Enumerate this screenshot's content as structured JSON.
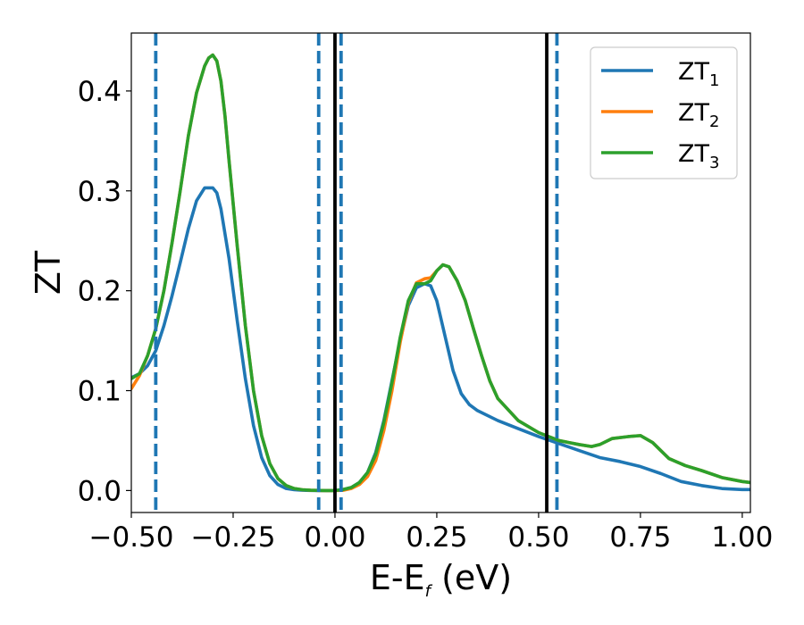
{
  "chart_data": {
    "type": "line",
    "xlabel_main": "E-E",
    "xlabel_sub": "f",
    "xlabel_unit": " (eV)",
    "ylabel": "ZT",
    "xlim": [
      -0.5,
      1.02
    ],
    "ylim": [
      -0.022,
      0.458
    ],
    "xticks": [
      -0.5,
      -0.25,
      0.0,
      0.25,
      0.5,
      0.75,
      1.0
    ],
    "xtick_labels": [
      "−0.50",
      "−0.25",
      "0.00",
      "0.25",
      "0.50",
      "0.75",
      "1.00"
    ],
    "yticks": [
      0.0,
      0.1,
      0.2,
      0.3,
      0.4
    ],
    "ytick_labels": [
      "0.0",
      "0.1",
      "0.2",
      "0.3",
      "0.4"
    ],
    "grid": false,
    "legend_position": "top-right",
    "legend": [
      {
        "main": "ZT",
        "sub": "1",
        "color": "#1f77b4"
      },
      {
        "main": "ZT",
        "sub": "2",
        "color": "#ff7f0e"
      },
      {
        "main": "ZT",
        "sub": "3",
        "color": "#2ca02c"
      }
    ],
    "vlines": [
      {
        "x": -0.44,
        "style": "dashed",
        "color": "#1f77b4"
      },
      {
        "x": -0.04,
        "style": "dashed",
        "color": "#1f77b4"
      },
      {
        "x": 0.015,
        "style": "dashed",
        "color": "#1f77b4"
      },
      {
        "x": 0.0,
        "style": "solid",
        "color": "#000000"
      },
      {
        "x": 0.52,
        "style": "solid",
        "color": "#000000"
      },
      {
        "x": 0.545,
        "style": "dashed",
        "color": "#1f77b4"
      }
    ],
    "series": [
      {
        "name": "ZT1",
        "color": "#1f77b4",
        "x": [
          -0.5,
          -0.48,
          -0.46,
          -0.44,
          -0.42,
          -0.4,
          -0.38,
          -0.36,
          -0.34,
          -0.32,
          -0.3,
          -0.29,
          -0.28,
          -0.26,
          -0.24,
          -0.22,
          -0.2,
          -0.18,
          -0.16,
          -0.14,
          -0.12,
          -0.1,
          -0.08,
          -0.06,
          -0.04,
          -0.02,
          0.0,
          0.02,
          0.04,
          0.06,
          0.08,
          0.1,
          0.12,
          0.14,
          0.16,
          0.18,
          0.2,
          0.22,
          0.235,
          0.25,
          0.27,
          0.29,
          0.31,
          0.33,
          0.35,
          0.4,
          0.45,
          0.5,
          0.55,
          0.6,
          0.65,
          0.7,
          0.75,
          0.8,
          0.85,
          0.9,
          0.95,
          1.0,
          1.02
        ],
        "y": [
          0.113,
          0.117,
          0.125,
          0.14,
          0.165,
          0.195,
          0.228,
          0.262,
          0.29,
          0.303,
          0.303,
          0.298,
          0.282,
          0.232,
          0.17,
          0.112,
          0.065,
          0.033,
          0.015,
          0.006,
          0.002,
          0.0008,
          0.0003,
          0.0001,
          0.0,
          0.0,
          0.0,
          0.001,
          0.003,
          0.008,
          0.018,
          0.038,
          0.07,
          0.11,
          0.15,
          0.185,
          0.203,
          0.207,
          0.205,
          0.19,
          0.155,
          0.12,
          0.097,
          0.086,
          0.08,
          0.07,
          0.062,
          0.054,
          0.047,
          0.04,
          0.033,
          0.029,
          0.024,
          0.017,
          0.009,
          0.005,
          0.002,
          0.001,
          0.001
        ]
      },
      {
        "name": "ZT2",
        "color": "#ff7f0e",
        "x": [
          -0.5,
          -0.48,
          -0.46,
          -0.44,
          -0.42,
          -0.4,
          -0.38,
          -0.36,
          -0.34,
          -0.32,
          -0.31,
          -0.3,
          -0.29,
          -0.28,
          -0.27,
          -0.26,
          -0.24,
          -0.22,
          -0.2,
          -0.18,
          -0.16,
          -0.14,
          -0.12,
          -0.1,
          -0.08,
          -0.06,
          -0.04,
          -0.02,
          0.0,
          0.02,
          0.04,
          0.06,
          0.08,
          0.1,
          0.12,
          0.14,
          0.16,
          0.18,
          0.2,
          0.22,
          0.235,
          0.25,
          0.265,
          0.28,
          0.3,
          0.32,
          0.34,
          0.36,
          0.38,
          0.4,
          0.45,
          0.5,
          0.55,
          0.6,
          0.63,
          0.65,
          0.68,
          0.72,
          0.75,
          0.78,
          0.82,
          0.86,
          0.9,
          0.95,
          1.0,
          1.02
        ],
        "y": [
          0.102,
          0.115,
          0.135,
          0.162,
          0.2,
          0.248,
          0.3,
          0.355,
          0.398,
          0.425,
          0.433,
          0.436,
          0.43,
          0.41,
          0.375,
          0.33,
          0.245,
          0.165,
          0.1,
          0.055,
          0.027,
          0.012,
          0.005,
          0.002,
          0.0008,
          0.0003,
          0.0001,
          0.0,
          0.0,
          0.0002,
          0.002,
          0.006,
          0.014,
          0.03,
          0.06,
          0.1,
          0.148,
          0.188,
          0.208,
          0.212,
          0.213,
          0.22,
          0.226,
          0.224,
          0.21,
          0.19,
          0.162,
          0.135,
          0.11,
          0.092,
          0.07,
          0.058,
          0.05,
          0.046,
          0.044,
          0.046,
          0.052,
          0.054,
          0.055,
          0.048,
          0.032,
          0.025,
          0.02,
          0.013,
          0.009,
          0.008
        ]
      },
      {
        "name": "ZT3",
        "color": "#2ca02c",
        "x": [
          -0.5,
          -0.48,
          -0.46,
          -0.44,
          -0.42,
          -0.4,
          -0.38,
          -0.36,
          -0.34,
          -0.32,
          -0.31,
          -0.3,
          -0.29,
          -0.28,
          -0.27,
          -0.26,
          -0.24,
          -0.22,
          -0.2,
          -0.18,
          -0.16,
          -0.14,
          -0.12,
          -0.1,
          -0.08,
          -0.06,
          -0.04,
          -0.02,
          0.0,
          0.02,
          0.04,
          0.06,
          0.08,
          0.1,
          0.12,
          0.14,
          0.16,
          0.18,
          0.2,
          0.22,
          0.235,
          0.25,
          0.265,
          0.28,
          0.3,
          0.32,
          0.34,
          0.36,
          0.38,
          0.4,
          0.45,
          0.5,
          0.55,
          0.6,
          0.63,
          0.65,
          0.68,
          0.72,
          0.75,
          0.78,
          0.82,
          0.86,
          0.9,
          0.95,
          1.0,
          1.02
        ],
        "y": [
          0.112,
          0.117,
          0.135,
          0.162,
          0.2,
          0.248,
          0.3,
          0.355,
          0.398,
          0.425,
          0.433,
          0.436,
          0.43,
          0.41,
          0.375,
          0.33,
          0.245,
          0.165,
          0.1,
          0.055,
          0.027,
          0.012,
          0.005,
          0.002,
          0.0008,
          0.0003,
          0.0001,
          0.0,
          0.0,
          0.001,
          0.003,
          0.008,
          0.018,
          0.036,
          0.068,
          0.108,
          0.153,
          0.19,
          0.207,
          0.207,
          0.21,
          0.22,
          0.226,
          0.224,
          0.21,
          0.19,
          0.162,
          0.135,
          0.11,
          0.092,
          0.07,
          0.058,
          0.05,
          0.046,
          0.044,
          0.046,
          0.052,
          0.054,
          0.055,
          0.048,
          0.032,
          0.025,
          0.02,
          0.013,
          0.009,
          0.008
        ]
      }
    ]
  }
}
